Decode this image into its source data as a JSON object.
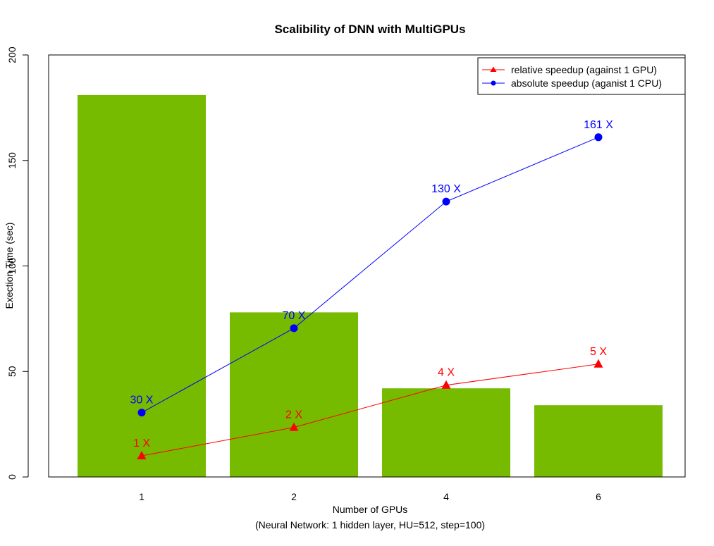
{
  "chart_data": {
    "type": "bar",
    "title": "Scalibility of DNN with MultiGPUs",
    "xlabel": "Number of GPUs",
    "xlabel_sub": "(Neural Network: 1 hidden layer, HU=512, step=100)",
    "ylabel": "Exection Time (sec)",
    "categories": [
      "1",
      "2",
      "4",
      "6"
    ],
    "values": [
      181,
      78,
      42,
      34
    ],
    "bar_color": "#76bb00",
    "ylim": [
      0,
      200
    ],
    "yticks": [
      "0",
      "50",
      "100",
      "150",
      "200"
    ],
    "grid": false,
    "legend_position": "top-right",
    "series": [
      {
        "name": "relative speedup (against 1 GPU)",
        "color": "#ff0000",
        "marker": "triangle",
        "values": [
          10,
          23.5,
          43.5,
          53.5
        ],
        "labels": [
          "1 X",
          "2 X",
          "4 X",
          "5 X"
        ]
      },
      {
        "name": "absolute speedup (aganist 1 CPU)",
        "color": "#0000ff",
        "marker": "circle",
        "values": [
          30.5,
          70.5,
          130.5,
          161
        ],
        "labels": [
          "30 X",
          "70 X",
          "130 X",
          "161 X"
        ]
      }
    ]
  }
}
